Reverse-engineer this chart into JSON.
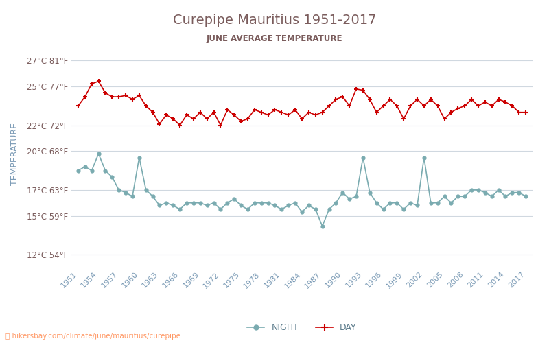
{
  "title": "Curepipe Mauritius 1951-2017",
  "subtitle": "JUNE AVERAGE TEMPERATURE",
  "title_color": "#7a5c5c",
  "subtitle_color": "#7a5c5c",
  "ylabel": "TEMPERATURE",
  "ylabel_color": "#7a9ab5",
  "background_color": "#ffffff",
  "grid_color": "#d0d8e0",
  "years": [
    1951,
    1952,
    1953,
    1954,
    1955,
    1956,
    1957,
    1958,
    1959,
    1960,
    1961,
    1962,
    1963,
    1964,
    1965,
    1966,
    1967,
    1968,
    1969,
    1970,
    1971,
    1972,
    1973,
    1974,
    1975,
    1976,
    1977,
    1978,
    1979,
    1980,
    1981,
    1982,
    1983,
    1984,
    1985,
    1986,
    1987,
    1988,
    1989,
    1990,
    1991,
    1992,
    1993,
    1994,
    1995,
    1996,
    1997,
    1998,
    1999,
    2000,
    2001,
    2002,
    2003,
    2004,
    2005,
    2006,
    2007,
    2008,
    2009,
    2010,
    2011,
    2012,
    2013,
    2014,
    2015,
    2016,
    2017
  ],
  "day": [
    23.5,
    24.2,
    25.2,
    25.4,
    24.5,
    24.2,
    24.2,
    24.3,
    24.0,
    24.3,
    23.5,
    23.0,
    22.1,
    22.8,
    22.5,
    22.0,
    22.8,
    22.5,
    23.0,
    22.5,
    23.0,
    22.0,
    23.2,
    22.8,
    22.3,
    22.5,
    23.2,
    23.0,
    22.8,
    23.2,
    23.0,
    22.8,
    23.2,
    22.5,
    23.0,
    22.8,
    23.0,
    23.5,
    24.0,
    24.2,
    23.5,
    24.8,
    24.7,
    24.0,
    23.0,
    23.5,
    24.0,
    23.5,
    22.5,
    23.5,
    24.0,
    23.5,
    24.0,
    23.5,
    22.5,
    23.0,
    23.3,
    23.5,
    24.0,
    23.5,
    23.8,
    23.5,
    24.0,
    23.8,
    23.5,
    23.0,
    23.0
  ],
  "night": [
    18.5,
    18.8,
    18.5,
    19.8,
    18.5,
    18.0,
    17.0,
    16.8,
    16.5,
    19.5,
    17.0,
    16.5,
    15.8,
    16.0,
    15.8,
    15.5,
    16.0,
    16.0,
    16.0,
    15.8,
    16.0,
    15.5,
    16.0,
    16.3,
    15.8,
    15.5,
    16.0,
    16.0,
    16.0,
    15.8,
    15.5,
    15.8,
    16.0,
    15.3,
    15.8,
    15.5,
    14.2,
    15.5,
    16.0,
    16.8,
    16.3,
    16.5,
    19.5,
    16.8,
    16.0,
    15.5,
    16.0,
    16.0,
    15.5,
    16.0,
    15.8,
    19.5,
    16.0,
    16.0,
    16.5,
    16.0,
    16.5,
    16.5,
    17.0,
    17.0,
    16.8,
    16.5,
    17.0,
    16.5,
    16.8,
    16.8,
    16.5
  ],
  "yticks_c": [
    12,
    15,
    17,
    20,
    22,
    25,
    27
  ],
  "yticks_f": [
    54,
    59,
    63,
    68,
    72,
    77,
    81
  ],
  "xticks": [
    1951,
    1954,
    1957,
    1960,
    1963,
    1966,
    1969,
    1972,
    1975,
    1978,
    1981,
    1984,
    1987,
    1990,
    1993,
    1996,
    1999,
    2002,
    2005,
    2008,
    2011,
    2014,
    2017
  ],
  "day_color": "#cc0000",
  "night_color": "#7aabb0",
  "watermark": "hikersbay.com/climate/june/mauritius/curepipe",
  "watermark_color": "#ff9966",
  "legend_label_color": "#5a7a8a"
}
